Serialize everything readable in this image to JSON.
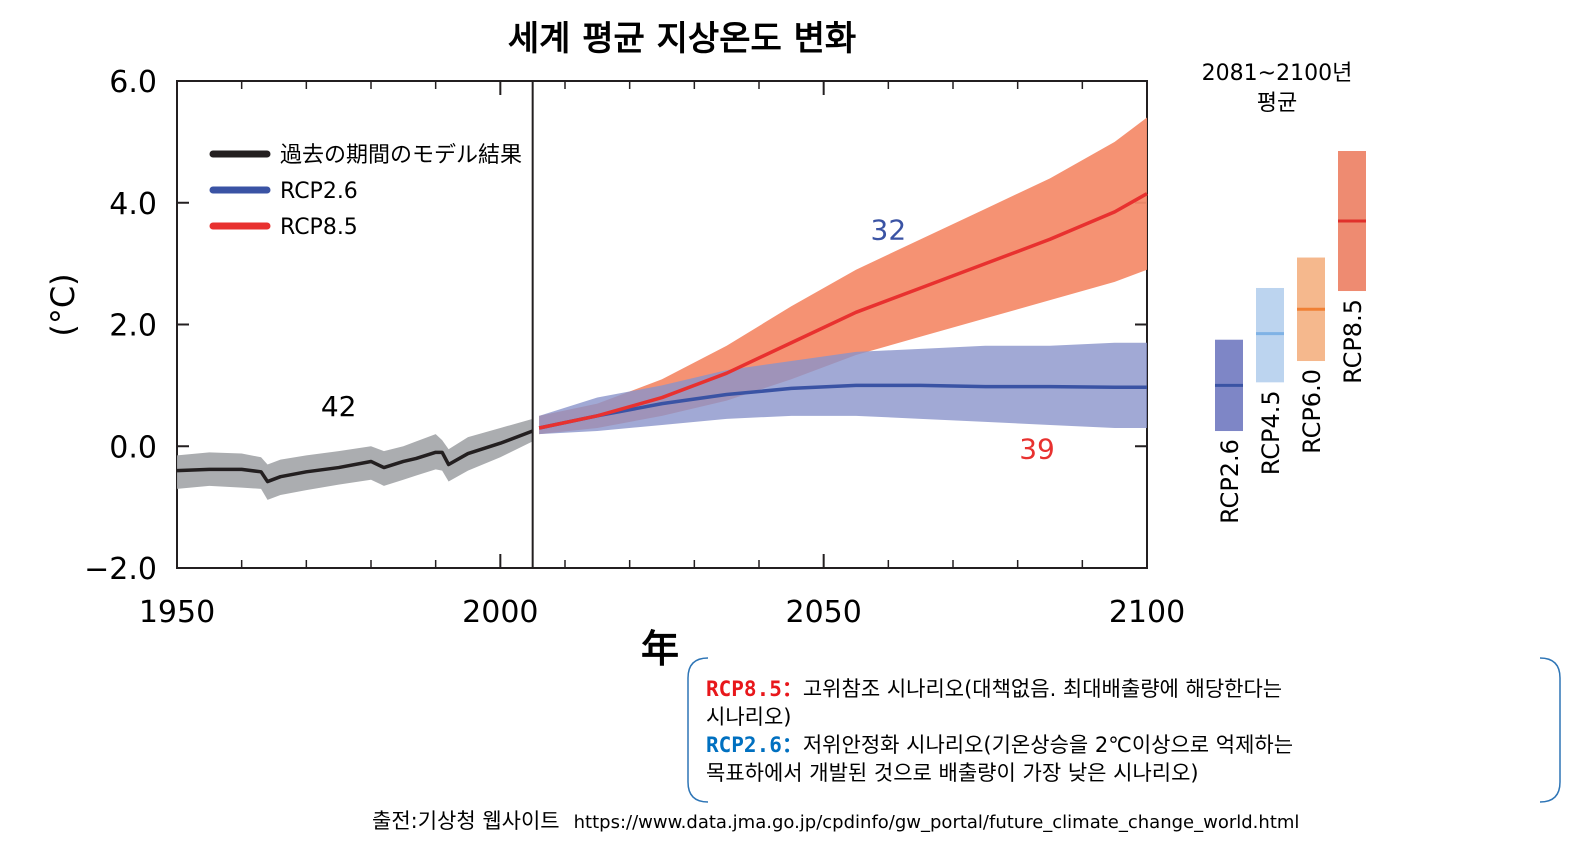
{
  "chart_data": {
    "type": "line",
    "title": "세계 평균 지상온도 변화",
    "ylabel": "(°C)",
    "xlabel": "年",
    "xlim": [
      1950,
      2100
    ],
    "ylim": [
      -2.0,
      6.0
    ],
    "xticks": [
      "1950",
      "2000",
      "2050",
      "2100"
    ],
    "yticks": [
      "−2.0",
      "0.0",
      "2.0",
      "4.0",
      "6.0"
    ],
    "divider_year": 2005,
    "legend": {
      "placement": "top-left",
      "entries": [
        {
          "label": "過去の期間のモデル結果",
          "color": "#231f20"
        },
        {
          "label": "RCP2.6",
          "color": "#3a53a4"
        },
        {
          "label": "RCP8.5",
          "color": "#e8312f"
        }
      ]
    },
    "series": [
      {
        "name": "過去の期間のモデル結果",
        "color": "#231f20",
        "band_color": "#a7a9ac",
        "model_count": "42",
        "x": [
          1950,
          1955,
          1960,
          1963,
          1964,
          1966,
          1970,
          1975,
          1980,
          1982,
          1985,
          1987,
          1990,
          1991,
          1992,
          1995,
          2000,
          2005
        ],
        "y": [
          -0.4,
          -0.38,
          -0.38,
          -0.42,
          -0.58,
          -0.5,
          -0.42,
          -0.35,
          -0.25,
          -0.35,
          -0.25,
          -0.2,
          -0.1,
          -0.1,
          -0.3,
          -0.12,
          0.05,
          0.25
        ],
        "lower": [
          -0.7,
          -0.65,
          -0.68,
          -0.7,
          -0.88,
          -0.8,
          -0.72,
          -0.63,
          -0.55,
          -0.65,
          -0.55,
          -0.48,
          -0.38,
          -0.4,
          -0.58,
          -0.4,
          -0.18,
          0.08
        ],
        "upper": [
          -0.15,
          -0.1,
          -0.12,
          -0.18,
          -0.3,
          -0.22,
          -0.15,
          -0.08,
          0.0,
          -0.08,
          0.0,
          0.08,
          0.2,
          0.1,
          -0.05,
          0.15,
          0.3,
          0.45
        ]
      },
      {
        "name": "RCP2.6",
        "color": "#3a53a4",
        "band_color": "#8a93cb",
        "model_count": "32",
        "x": [
          2006,
          2015,
          2025,
          2035,
          2045,
          2055,
          2065,
          2075,
          2085,
          2095,
          2100
        ],
        "y": [
          0.3,
          0.5,
          0.7,
          0.85,
          0.95,
          1.0,
          1.0,
          0.98,
          0.98,
          0.97,
          0.97
        ],
        "lower": [
          0.2,
          0.25,
          0.35,
          0.45,
          0.5,
          0.5,
          0.45,
          0.4,
          0.35,
          0.3,
          0.3
        ],
        "upper": [
          0.5,
          0.8,
          1.0,
          1.25,
          1.4,
          1.55,
          1.6,
          1.65,
          1.65,
          1.7,
          1.7
        ]
      },
      {
        "name": "RCP8.5",
        "color": "#e8312f",
        "band_color": "#f48c6c",
        "model_count": "39",
        "x": [
          2006,
          2015,
          2025,
          2035,
          2045,
          2055,
          2065,
          2075,
          2085,
          2095,
          2100
        ],
        "y": [
          0.3,
          0.5,
          0.8,
          1.2,
          1.7,
          2.2,
          2.6,
          3.0,
          3.4,
          3.85,
          4.15
        ],
        "lower": [
          0.2,
          0.3,
          0.5,
          0.75,
          1.1,
          1.5,
          1.8,
          2.1,
          2.4,
          2.7,
          2.9
        ],
        "upper": [
          0.5,
          0.7,
          1.1,
          1.65,
          2.3,
          2.9,
          3.4,
          3.9,
          4.4,
          5.0,
          5.4
        ]
      }
    ],
    "period_average": {
      "label": [
        "2081~2100년",
        "평균"
      ],
      "bars": [
        {
          "name": "RCP2.6",
          "low": 0.25,
          "mean": 1.0,
          "high": 1.75,
          "fill": "#7e86c6",
          "line": "#3a53a4"
        },
        {
          "name": "RCP4.5",
          "low": 1.05,
          "mean": 1.85,
          "high": 2.6,
          "fill": "#bcd4ef",
          "line": "#7fb2e5"
        },
        {
          "name": "RCP6.0",
          "low": 1.4,
          "mean": 2.25,
          "high": 3.1,
          "fill": "#f5b88d",
          "line": "#f08035"
        },
        {
          "name": "RCP8.5",
          "low": 2.55,
          "mean": 3.7,
          "high": 4.85,
          "fill": "#ee8b71",
          "line": "#e0312c"
        }
      ]
    }
  },
  "notes": {
    "rcp85_key": "RCP8.5：",
    "rcp85_color": "#e8171b",
    "rcp85_text": "고위참조 시나리오(대책없음. 최대배출량에 해당한다는",
    "rcp85_text_cont": "시나리오)",
    "rcp26_key": "RCP2.6：",
    "rcp26_color": "#0070c0",
    "rcp26_text": "저위안정화 시나리오(기온상승을 2℃이상으로 억제하는",
    "rcp26_text_cont": "목표하에서 개발된 것으로 배출량이 가장 낮은 시나리오)",
    "box_color": "#2e75b6"
  },
  "source": {
    "label": "출전:기상청 웹사이트",
    "url": "https://www.data.jma.go.jp/cpdinfo/gw_portal/future_climate_change_world.html"
  }
}
